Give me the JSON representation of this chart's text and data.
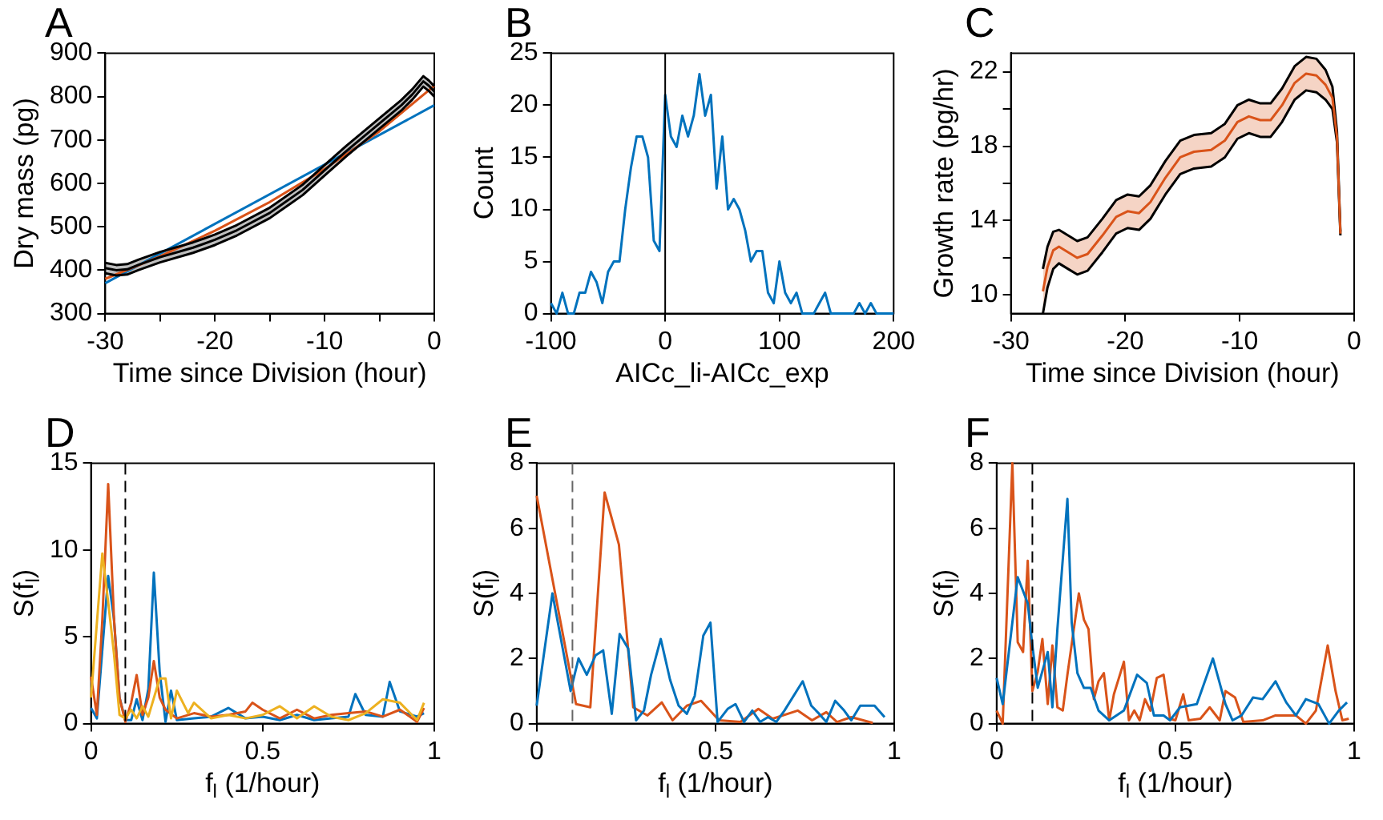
{
  "chart_data": [
    {
      "type": "line",
      "title": "A",
      "xlabel": "Time since Division (hour)",
      "ylabel": "Dry mass (pg)",
      "xlim": [
        -30,
        0
      ],
      "xticks": [
        -30,
        {
          "value": -25,
          "label": null
        },
        -20,
        {
          "value": -15,
          "label": null
        },
        -10,
        {
          "value": -5,
          "label": null
        },
        0
      ],
      "ylim": [
        300,
        900
      ],
      "yticks": [
        300,
        400,
        500,
        600,
        700,
        800,
        900
      ],
      "series": [
        {
          "color": "#000000",
          "x": [
            -30,
            -29,
            -28,
            -27,
            -25,
            -22,
            -20,
            -18,
            -15,
            -12,
            -10,
            -8,
            -5,
            -3,
            -2,
            -1,
            -0.5,
            0
          ],
          "values": [
            405,
            400,
            402,
            412,
            430,
            452,
            470,
            492,
            532,
            585,
            630,
            675,
            738,
            780,
            805,
            835,
            825,
            812
          ],
          "lower": [
            393,
            388,
            390,
            400,
            418,
            440,
            458,
            480,
            520,
            573,
            618,
            663,
            726,
            768,
            793,
            823,
            813,
            800
          ],
          "upper": [
            417,
            412,
            414,
            424,
            442,
            464,
            482,
            504,
            544,
            597,
            642,
            687,
            750,
            792,
            817,
            847,
            837,
            824
          ]
        },
        {
          "color": "#000000",
          "x": [
            -30,
            -29,
            -28,
            -27,
            -25,
            -22,
            -20,
            -18,
            -15,
            -12,
            -10,
            -8,
            -5,
            -3,
            -2,
            -1,
            -0.5,
            0
          ],
          "values": [
            393,
            388,
            390,
            400,
            418,
            440,
            458,
            480,
            520,
            573,
            618,
            663,
            726,
            768,
            793,
            823,
            813,
            800
          ]
        },
        {
          "color": "#000000",
          "x": [
            -30,
            -29,
            -28,
            -27,
            -25,
            -22,
            -20,
            -18,
            -15,
            -12,
            -10,
            -8,
            -5,
            -3,
            -2,
            -1,
            -0.5,
            0
          ],
          "values": [
            417,
            412,
            414,
            424,
            442,
            464,
            482,
            504,
            544,
            597,
            642,
            687,
            750,
            792,
            817,
            847,
            837,
            824
          ]
        },
        {
          "color": "#d95319",
          "x": [
            -30,
            -25,
            -20,
            -15,
            -10,
            -5,
            0
          ],
          "values": [
            380,
            432,
            491,
            557,
            633,
            720,
            825
          ]
        },
        {
          "color": "#0072bd",
          "x": [
            -30,
            0
          ],
          "values": [
            370,
            780
          ]
        }
      ]
    },
    {
      "type": "line",
      "title": "B",
      "xlabel": "AICc_li-AICc_exp",
      "ylabel": "Count",
      "xlim": [
        -100,
        200
      ],
      "xticks": [
        -100,
        0,
        100,
        200
      ],
      "ylim": [
        0,
        25
      ],
      "yticks": [
        0,
        5,
        10,
        15,
        20,
        25
      ],
      "ref_lines": [
        {
          "axis": "x",
          "value": 0,
          "color": "#000000"
        }
      ],
      "series": [
        {
          "color": "#0072bd",
          "x": [
            -100,
            -95,
            -90,
            -85,
            -80,
            -75,
            -70,
            -65,
            -60,
            -55,
            -50,
            -45,
            -40,
            -35,
            -30,
            -25,
            -20,
            -15,
            -10,
            -5,
            0,
            5,
            10,
            15,
            20,
            25,
            30,
            35,
            40,
            45,
            50,
            55,
            60,
            65,
            70,
            75,
            80,
            85,
            90,
            95,
            100,
            105,
            110,
            115,
            120,
            125,
            130,
            135,
            140,
            145,
            150,
            155,
            160,
            165,
            170,
            175,
            180,
            185,
            190,
            195,
            200
          ],
          "values": [
            1,
            0,
            2,
            0,
            0,
            2,
            2,
            4,
            3,
            1,
            4,
            5,
            5,
            10,
            14,
            17,
            17,
            15,
            7,
            6,
            21,
            17,
            16,
            19,
            17,
            19,
            23,
            19,
            21,
            12,
            17,
            10,
            11,
            10,
            8,
            5,
            6,
            6,
            2,
            1,
            5,
            2,
            1,
            2,
            0,
            0,
            0,
            1,
            2,
            0,
            0,
            0,
            0,
            0,
            1,
            0,
            1,
            0,
            0,
            0,
            0
          ]
        }
      ]
    },
    {
      "type": "line",
      "title": "C",
      "xlabel": "Time since Division (hour)",
      "ylabel": "Growth rate (pg/hr)",
      "xlim": [
        -30,
        0
      ],
      "xticks": [
        -30,
        -20,
        -10,
        0
      ],
      "ylim": [
        9,
        23
      ],
      "yticks": [
        10,
        {
          "value": 12,
          "label": null
        },
        14,
        {
          "value": 16,
          "label": null
        },
        18,
        {
          "value": 20,
          "label": null
        },
        22
      ],
      "series": [
        {
          "color": "#d95319",
          "x": [
            -27.2,
            -26.8,
            -26.3,
            -25.8,
            -25.0,
            -24.2,
            -23.3,
            -22.0,
            -20.8,
            -19.8,
            -18.8,
            -17.8,
            -16.5,
            -15.2,
            -14.0,
            -12.5,
            -11.3,
            -10.2,
            -9.2,
            -8.2,
            -7.3,
            -6.3,
            -5.2,
            -4.2,
            -3.3,
            -2.5,
            -1.9,
            -1.5,
            -1.2
          ],
          "values": [
            10.2,
            11.5,
            12.4,
            12.6,
            12.3,
            12.0,
            12.2,
            13.2,
            14.2,
            14.5,
            14.4,
            15.0,
            16.3,
            17.4,
            17.7,
            17.8,
            18.3,
            19.3,
            19.6,
            19.4,
            19.4,
            20.2,
            21.4,
            21.9,
            21.8,
            21.3,
            20.6,
            18.5,
            13.3
          ],
          "lower": [
            9.0,
            10.4,
            11.4,
            11.7,
            11.4,
            11.1,
            11.3,
            12.3,
            13.3,
            13.6,
            13.5,
            14.1,
            15.4,
            16.5,
            16.8,
            16.9,
            17.4,
            18.4,
            18.7,
            18.5,
            18.5,
            19.3,
            20.5,
            21.0,
            20.9,
            20.5,
            20.0,
            18.2,
            13.2
          ],
          "upper": [
            11.4,
            12.6,
            13.4,
            13.5,
            13.2,
            12.9,
            13.1,
            14.1,
            15.1,
            15.4,
            15.3,
            15.9,
            17.2,
            18.3,
            18.6,
            18.7,
            19.2,
            20.2,
            20.5,
            20.3,
            20.3,
            21.1,
            22.3,
            22.8,
            22.7,
            22.1,
            21.2,
            18.8,
            13.4
          ]
        },
        {
          "color": "#000000",
          "x": [
            -27.2,
            -26.8,
            -26.3,
            -25.8,
            -25.0,
            -24.2,
            -23.3,
            -22.0,
            -20.8,
            -19.8,
            -18.8,
            -17.8,
            -16.5,
            -15.2,
            -14.0,
            -12.5,
            -11.3,
            -10.2,
            -9.2,
            -8.2,
            -7.3,
            -6.3,
            -5.2,
            -4.2,
            -3.3,
            -2.5,
            -1.9,
            -1.5,
            -1.2
          ],
          "values": [
            9.0,
            10.4,
            11.4,
            11.7,
            11.4,
            11.1,
            11.3,
            12.3,
            13.3,
            13.6,
            13.5,
            14.1,
            15.4,
            16.5,
            16.8,
            16.9,
            17.4,
            18.4,
            18.7,
            18.5,
            18.5,
            19.3,
            20.5,
            21.0,
            20.9,
            20.5,
            20.0,
            18.2,
            13.2
          ]
        },
        {
          "color": "#000000",
          "x": [
            -27.2,
            -26.8,
            -26.3,
            -25.8,
            -25.0,
            -24.2,
            -23.3,
            -22.0,
            -20.8,
            -19.8,
            -18.8,
            -17.8,
            -16.5,
            -15.2,
            -14.0,
            -12.5,
            -11.3,
            -10.2,
            -9.2,
            -8.2,
            -7.3,
            -6.3,
            -5.2,
            -4.2,
            -3.3,
            -2.5,
            -1.9,
            -1.5,
            -1.2
          ],
          "values": [
            11.4,
            12.6,
            13.4,
            13.5,
            13.2,
            12.9,
            13.1,
            14.1,
            15.1,
            15.4,
            15.3,
            15.9,
            17.2,
            18.3,
            18.6,
            18.7,
            19.2,
            20.2,
            20.5,
            20.3,
            20.3,
            21.1,
            22.3,
            22.8,
            22.7,
            22.1,
            21.2,
            18.8,
            13.4
          ]
        }
      ]
    },
    {
      "type": "line",
      "title": "D",
      "xlabel": "f$_{l}$ (1/hour)",
      "ylabel": "S(f$_{l}$)",
      "xlim": [
        0,
        1
      ],
      "xticks": [
        0,
        0.5,
        1
      ],
      "ylim": [
        0,
        15
      ],
      "yticks": [
        0,
        5,
        10,
        15
      ],
      "ref_lines": [
        {
          "axis": "x",
          "value": 0.1,
          "color": "#000000",
          "line_style": "dashed"
        }
      ],
      "series": [
        {
          "color": "#edb120",
          "x": [
            0,
            0.033,
            0.05,
            0.067,
            0.083,
            0.1,
            0.117,
            0.133,
            0.15,
            0.167,
            0.2,
            0.217,
            0.233,
            0.25,
            0.283,
            0.3,
            0.35,
            0.4,
            0.45,
            0.5,
            0.55,
            0.6,
            0.65,
            0.7,
            0.75,
            0.8,
            0.85,
            0.9,
            0.95,
            0.97
          ],
          "values": [
            1.5,
            9.8,
            7,
            4,
            0.5,
            0.3,
            0.8,
            0.3,
            1.0,
            0.4,
            2.6,
            2.6,
            0.3,
            1.9,
            0.6,
            1.2,
            0.3,
            0.5,
            0.3,
            0.5,
            1.0,
            0.3,
            1.0,
            0.4,
            0.2,
            0.6,
            1.4,
            1.2,
            0.2,
            1.2
          ]
        },
        {
          "color": "#d95319",
          "x": [
            0,
            0.017,
            0.033,
            0.05,
            0.067,
            0.083,
            0.1,
            0.117,
            0.133,
            0.15,
            0.167,
            0.183,
            0.2,
            0.217,
            0.25,
            0.3,
            0.35,
            0.4,
            0.45,
            0.47,
            0.5,
            0.55,
            0.6,
            0.65,
            0.7,
            0.75,
            0.8,
            0.85,
            0.9,
            0.95,
            0.97
          ],
          "values": [
            2.7,
            0.5,
            6,
            13.8,
            6,
            1.5,
            0.1,
            1.2,
            2.8,
            0.5,
            1.5,
            3.6,
            1.5,
            0.8,
            0.3,
            0.6,
            0.4,
            0.5,
            0.7,
            1.2,
            0.8,
            0.3,
            0.8,
            0.3,
            0.5,
            0.6,
            0.7,
            0.4,
            0.8,
            0.1,
            0.9
          ]
        },
        {
          "color": "#0072bd",
          "x": [
            0,
            0.017,
            0.05,
            0.067,
            0.083,
            0.1,
            0.117,
            0.133,
            0.15,
            0.167,
            0.183,
            0.2,
            0.217,
            0.233,
            0.25,
            0.3,
            0.35,
            0.4,
            0.45,
            0.5,
            0.55,
            0.6,
            0.65,
            0.7,
            0.75,
            0.77,
            0.8,
            0.85,
            0.87,
            0.9,
            0.95,
            0.97
          ],
          "values": [
            0.9,
            0.3,
            8.5,
            6,
            1.5,
            0.2,
            0.2,
            1.4,
            0.2,
            2,
            8.7,
            3,
            0.1,
            1.9,
            0.2,
            0.3,
            0.4,
            0.9,
            0.3,
            0.4,
            0.2,
            0.5,
            0.2,
            0.3,
            0.4,
            1.7,
            0.5,
            0.4,
            2.4,
            0.7,
            0.4,
            0.6
          ]
        }
      ]
    },
    {
      "type": "line",
      "title": "E",
      "xlabel": "f$_{l}$ (1/hour)",
      "ylabel": "S(f$_{l}$)",
      "xlim": [
        0,
        1
      ],
      "xticks": [
        0,
        0.5,
        1
      ],
      "ylim": [
        0,
        8
      ],
      "yticks": [
        0,
        2,
        4,
        6,
        8
      ],
      "ref_lines": [
        {
          "axis": "x",
          "value": 0.1,
          "color": "#666666",
          "line_style": "dashed"
        }
      ],
      "series": [
        {
          "color": "#0072bd",
          "x": [
            0,
            0.044,
            0.095,
            0.117,
            0.14,
            0.165,
            0.186,
            0.21,
            0.232,
            0.256,
            0.278,
            0.3,
            0.32,
            0.347,
            0.373,
            0.397,
            0.42,
            0.442,
            0.466,
            0.486,
            0.506,
            0.534,
            0.556,
            0.58,
            0.603,
            0.625,
            0.647,
            0.67,
            0.693,
            0.744,
            0.768,
            0.79,
            0.81,
            0.835,
            0.86,
            0.88,
            0.905,
            0.945,
            0.973
          ],
          "values": [
            0.55,
            4.0,
            1.0,
            2.0,
            1.5,
            2.1,
            2.25,
            0.3,
            2.75,
            2.3,
            0.1,
            0.4,
            1.5,
            2.6,
            1.35,
            0.55,
            0.3,
            0.85,
            2.7,
            3.1,
            0.05,
            0.45,
            0.6,
            0.05,
            0.4,
            0.05,
            0.2,
            0.05,
            0.4,
            1.3,
            0.55,
            0.3,
            0.05,
            0.7,
            0.4,
            0.1,
            0.55,
            0.55,
            0.2
          ]
        },
        {
          "color": "#d95319",
          "x": [
            0,
            0.11,
            0.15,
            0.19,
            0.23,
            0.27,
            0.31,
            0.35,
            0.38,
            0.42,
            0.46,
            0.51,
            0.57,
            0.62,
            0.66,
            0.73,
            0.77,
            0.81,
            0.84,
            0.88,
            0.94
          ],
          "values": [
            7.0,
            0.6,
            0.5,
            7.1,
            5.5,
            0.5,
            0.25,
            0.65,
            0.1,
            0.55,
            0.7,
            0.1,
            0.05,
            0.45,
            0.15,
            0.4,
            0.1,
            0.35,
            0.05,
            0.2,
            0.02
          ]
        }
      ]
    },
    {
      "type": "line",
      "title": "F",
      "xlabel": "f$_{l}$ (1/hour)",
      "ylabel": "S(f$_{l}$)",
      "xlim": [
        0,
        1
      ],
      "xticks": [
        0,
        0.5,
        1
      ],
      "ylim": [
        0,
        8
      ],
      "yticks": [
        0,
        2,
        4,
        6,
        8
      ],
      "ref_lines": [
        {
          "axis": "x",
          "value": 0.1,
          "color": "#000000",
          "line_style": "dashed"
        }
      ],
      "series": [
        {
          "color": "#0072bd",
          "x": [
            0,
            0.017,
            0.059,
            0.087,
            0.1,
            0.115,
            0.143,
            0.156,
            0.17,
            0.198,
            0.21,
            0.226,
            0.244,
            0.263,
            0.285,
            0.315,
            0.356,
            0.393,
            0.42,
            0.44,
            0.467,
            0.485,
            0.513,
            0.56,
            0.605,
            0.64,
            0.66,
            0.685,
            0.717,
            0.744,
            0.78,
            0.81,
            0.837,
            0.865,
            0.9,
            0.93,
            0.957,
            0.98
          ],
          "values": [
            1.4,
            0.6,
            4.5,
            3.7,
            2.4,
            1.1,
            2.2,
            0.5,
            2.9,
            6.9,
            3.1,
            1.55,
            1.1,
            1.1,
            0.4,
            0.1,
            0.4,
            1.5,
            1.25,
            0.25,
            0.25,
            0.1,
            0.5,
            0.6,
            2.0,
            0.6,
            0.1,
            0.25,
            0.8,
            0.75,
            1.3,
            0.65,
            0.25,
            0.75,
            0.6,
            0,
            0.4,
            0.65
          ]
        },
        {
          "color": "#d95319",
          "x": [
            0,
            0.017,
            0.044,
            0.059,
            0.074,
            0.087,
            0.1,
            0.115,
            0.128,
            0.143,
            0.156,
            0.17,
            0.185,
            0.198,
            0.23,
            0.244,
            0.257,
            0.272,
            0.285,
            0.3,
            0.315,
            0.328,
            0.356,
            0.37,
            0.385,
            0.4,
            0.415,
            0.43,
            0.448,
            0.467,
            0.485,
            0.5,
            0.522,
            0.537,
            0.57,
            0.596,
            0.624,
            0.64,
            0.667,
            0.69,
            0.744,
            0.78,
            0.837,
            0.865,
            0.893,
            0.926,
            0.948,
            0.967,
            0.985
          ],
          "values": [
            0.4,
            0,
            8,
            2.5,
            2.2,
            5.0,
            1.0,
            1.6,
            2.6,
            0.6,
            2.4,
            0.5,
            0.4,
            1.5,
            4.0,
            3.2,
            2.9,
            0.75,
            1.3,
            1.55,
            0.1,
            0.9,
            1.9,
            0.1,
            0.4,
            0.1,
            0.75,
            0.4,
            1.4,
            1.5,
            0.15,
            0.1,
            0.9,
            0.1,
            0.15,
            0.5,
            0.1,
            1.0,
            0.8,
            0.05,
            0.1,
            0.25,
            0.25,
            0,
            0.4,
            2.4,
            1.0,
            0.1,
            0.15
          ]
        }
      ]
    }
  ]
}
